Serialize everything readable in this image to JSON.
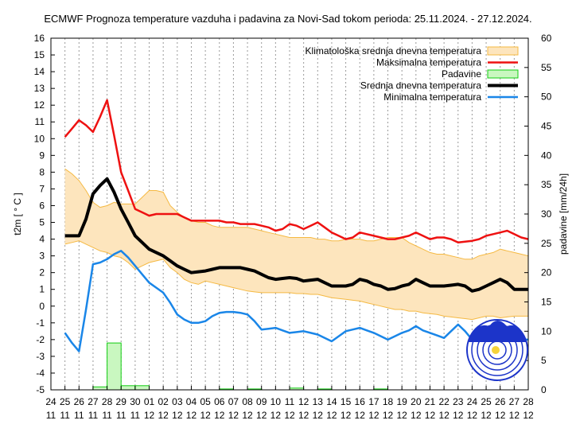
{
  "chart_data": {
    "type": "line",
    "title": "ECMWF Prognoza temperature vazduha i padavina za Novi-Sad tokom perioda: 25.11.2024. - 27.12.2024.",
    "ylabel": "t2m [ ° C ]",
    "y2label": "padavine [mm/24h]",
    "ylim": [
      -5,
      16
    ],
    "y2lim": [
      0,
      60
    ],
    "yticks": [
      "-5",
      "-4",
      "-3",
      "-2",
      "-1",
      "0",
      "1",
      "2",
      "3",
      "4",
      "5",
      "6",
      "7",
      "8",
      "9",
      "10",
      "11",
      "12",
      "13",
      "14",
      "15",
      "16"
    ],
    "y2ticks": [
      "0",
      "5",
      "10",
      "15",
      "20",
      "25",
      "30",
      "35",
      "40",
      "45",
      "50",
      "55",
      "60"
    ],
    "xticks_day": [
      "24",
      "25",
      "26",
      "27",
      "28",
      "29",
      "30",
      "01",
      "02",
      "03",
      "04",
      "05",
      "06",
      "07",
      "08",
      "09",
      "10",
      "11",
      "12",
      "13",
      "14",
      "15",
      "16",
      "17",
      "18",
      "19",
      "20",
      "21",
      "22",
      "23",
      "24",
      "25",
      "26",
      "27",
      "28"
    ],
    "xticks_month": [
      "11",
      "11",
      "11",
      "11",
      "11",
      "11",
      "11",
      "12",
      "12",
      "12",
      "12",
      "12",
      "12",
      "12",
      "12",
      "12",
      "12",
      "12",
      "12",
      "12",
      "12",
      "12",
      "12",
      "12",
      "12",
      "12",
      "12",
      "12",
      "12",
      "12",
      "12",
      "12",
      "12",
      "12",
      "12"
    ],
    "grid": "vertical dotted",
    "legend_position": "top-right",
    "legend": [
      "Klimatološka srednja dnevna temperatura",
      "Maksimalna temperatura",
      "Padavine",
      "Srednja dnevna temperatura",
      "Minimalna temperatura"
    ],
    "colors": {
      "clim_fill": "#fde5bd",
      "clim_edge": "#f5b942",
      "max": "#ee1111",
      "precip_fill": "#c9f7c0",
      "precip_edge": "#11cc11",
      "mean": "#000000",
      "min": "#1a86e8"
    },
    "x": [
      25,
      25.5,
      26,
      26.5,
      27,
      27.5,
      28,
      28.5,
      29,
      29.5,
      30,
      30.5,
      31,
      31.5,
      32,
      32.5,
      33,
      33.5,
      34,
      34.5,
      35,
      35.5,
      36,
      36.5,
      37,
      37.5,
      38,
      38.5,
      39,
      39.5,
      40,
      40.5,
      41,
      41.5,
      42,
      42.5,
      43,
      43.5,
      44,
      44.5,
      45,
      45.5,
      46,
      46.5,
      47,
      47.5,
      48,
      48.5,
      49,
      49.5,
      50,
      50.5,
      51,
      51.5,
      52,
      52.5,
      53,
      53.5,
      54,
      54.5,
      55,
      55.5,
      56,
      56.5,
      57,
      57.5,
      58
    ],
    "clim_upper": [
      8.2,
      7.9,
      7.5,
      6.9,
      6.2,
      5.9,
      6.0,
      6.2,
      6.1,
      6.1,
      6.1,
      6.5,
      6.9,
      6.9,
      6.8,
      6.0,
      5.6,
      5.3,
      5.1,
      5.0,
      5.0,
      4.8,
      4.7,
      4.7,
      4.7,
      4.7,
      4.7,
      4.6,
      4.5,
      4.4,
      4.3,
      4.2,
      4.1,
      4.1,
      4.1,
      4.1,
      4.0,
      4.0,
      3.9,
      3.9,
      4.0,
      4.0,
      4.0,
      3.9,
      3.9,
      4.0,
      4.1,
      4.1,
      4.1,
      3.8,
      3.6,
      3.4,
      3.2,
      3.1,
      3.1,
      3.0,
      2.9,
      2.8,
      2.8,
      3.0,
      3.1,
      3.2,
      3.4,
      3.3,
      3.2,
      3.1,
      3.0
    ],
    "clim_lower": [
      3.7,
      3.8,
      3.9,
      3.7,
      3.5,
      3.3,
      3.2,
      3.0,
      2.9,
      2.6,
      2.2,
      2.4,
      2.6,
      2.7,
      2.8,
      2.3,
      2.0,
      1.6,
      1.4,
      1.3,
      1.5,
      1.4,
      1.3,
      1.2,
      1.1,
      1.0,
      0.9,
      0.85,
      0.8,
      0.8,
      0.8,
      0.8,
      0.8,
      0.75,
      0.75,
      0.7,
      0.7,
      0.6,
      0.5,
      0.45,
      0.4,
      0.35,
      0.3,
      0.2,
      0.1,
      0.0,
      -0.1,
      -0.2,
      -0.2,
      -0.3,
      -0.3,
      -0.4,
      -0.45,
      -0.5,
      -0.6,
      -0.65,
      -0.7,
      -0.75,
      -0.8,
      -0.7,
      -0.6,
      -0.6,
      -0.7,
      -0.65,
      -0.6,
      -0.6,
      -0.6
    ],
    "max_temp": [
      10.1,
      10.6,
      11.1,
      10.8,
      10.4,
      11.3,
      12.3,
      10.2,
      8.0,
      6.9,
      5.8,
      5.6,
      5.4,
      5.5,
      5.5,
      5.5,
      5.5,
      5.3,
      5.1,
      5.1,
      5.1,
      5.1,
      5.1,
      5.0,
      5.0,
      4.9,
      4.9,
      4.9,
      4.8,
      4.7,
      4.5,
      4.6,
      4.9,
      4.8,
      4.6,
      4.8,
      5.0,
      4.7,
      4.4,
      4.2,
      4.0,
      4.1,
      4.4,
      4.3,
      4.2,
      4.1,
      4.0,
      4.0,
      4.1,
      4.2,
      4.4,
      4.2,
      4.0,
      4.1,
      4.1,
      4.0,
      3.8,
      3.85,
      3.9,
      4.0,
      4.2,
      4.3,
      4.4,
      4.5,
      4.3,
      4.1,
      4.0
    ],
    "mean_temp": [
      4.2,
      4.2,
      4.2,
      5.2,
      6.7,
      7.2,
      7.6,
      6.8,
      5.8,
      5.0,
      4.2,
      3.8,
      3.4,
      3.2,
      3.0,
      2.7,
      2.4,
      2.2,
      2.0,
      2.05,
      2.1,
      2.2,
      2.3,
      2.3,
      2.3,
      2.3,
      2.2,
      2.1,
      1.9,
      1.7,
      1.6,
      1.65,
      1.7,
      1.65,
      1.5,
      1.55,
      1.6,
      1.4,
      1.2,
      1.2,
      1.2,
      1.3,
      1.6,
      1.5,
      1.3,
      1.2,
      1.0,
      1.05,
      1.2,
      1.3,
      1.6,
      1.4,
      1.2,
      1.2,
      1.2,
      1.25,
      1.3,
      1.2,
      0.9,
      1.0,
      1.2,
      1.4,
      1.6,
      1.4,
      1.0,
      1.0,
      1.0
    ],
    "min_temp": [
      -1.6,
      -2.2,
      -2.7,
      -0.2,
      2.5,
      2.6,
      2.8,
      3.1,
      3.3,
      2.9,
      2.4,
      1.9,
      1.4,
      1.1,
      0.8,
      0.2,
      -0.5,
      -0.8,
      -1.0,
      -1.0,
      -0.9,
      -0.6,
      -0.4,
      -0.35,
      -0.35,
      -0.4,
      -0.5,
      -0.9,
      -1.4,
      -1.35,
      -1.3,
      -1.45,
      -1.6,
      -1.55,
      -1.5,
      -1.6,
      -1.7,
      -1.9,
      -2.1,
      -1.8,
      -1.5,
      -1.4,
      -1.3,
      -1.45,
      -1.6,
      -1.8,
      -2.0,
      -1.8,
      -1.6,
      -1.45,
      -1.2,
      -1.45,
      -1.6,
      -1.75,
      -1.9,
      -1.5,
      -1.1,
      -1.5,
      -2.0,
      -2.3,
      -2.5,
      -2.4,
      -2.2,
      -2.1,
      -2.0,
      -2.0,
      -2.0
    ],
    "precip": [
      {
        "x": 27.5,
        "value": 0.5
      },
      {
        "x": 28.5,
        "value": 8.0
      },
      {
        "x": 29.5,
        "value": 0.7
      },
      {
        "x": 30.5,
        "value": 0.7
      },
      {
        "x": 36.5,
        "value": 0.15
      },
      {
        "x": 38.5,
        "value": 0.15
      },
      {
        "x": 41.5,
        "value": 0.3
      },
      {
        "x": 43.5,
        "value": 0.15
      },
      {
        "x": 47.5,
        "value": 0.15
      }
    ]
  }
}
